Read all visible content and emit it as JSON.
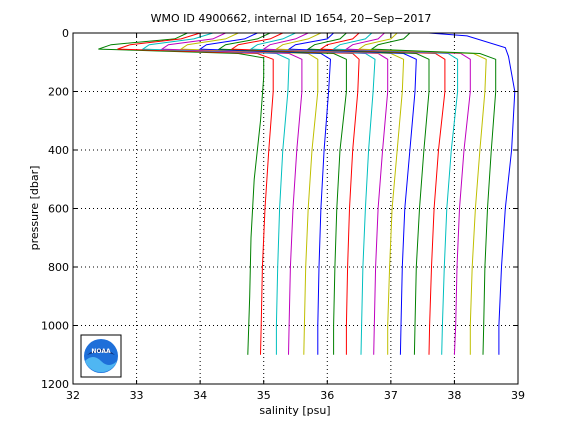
{
  "chart_data": {
    "type": "line",
    "title": "WMO ID 4900662, internal ID 1654, 20−Sep−2017",
    "xlabel": "salinity [psu]",
    "ylabel": "pressure [dbar]",
    "xlim": [
      32,
      39
    ],
    "ylim": [
      1200,
      0
    ],
    "y_reversed": true,
    "grid": "dotted",
    "xticks": [
      32,
      33,
      34,
      35,
      36,
      37,
      38,
      39
    ],
    "xtick_labels": [
      "32",
      "33",
      "34",
      "35",
      "36",
      "37",
      "38",
      "39"
    ],
    "yticks": [
      0,
      200,
      400,
      600,
      800,
      1000,
      1200
    ],
    "ytick_labels": [
      "0",
      "200",
      "400",
      "600",
      "800",
      "1000",
      "1200"
    ],
    "logo": "noaa-logo",
    "logo_text": "NOAA",
    "colors": [
      "#008000",
      "#ff0000",
      "#00bfbf",
      "#bf00bf",
      "#bfbf00",
      "#0000ff"
    ],
    "series": [
      {
        "color": "#008000",
        "points": [
          [
            33.8,
            0
          ],
          [
            33.6,
            20
          ],
          [
            32.6,
            40
          ],
          [
            32.4,
            55
          ],
          [
            34.6,
            70
          ],
          [
            35.0,
            85
          ],
          [
            35.0,
            150
          ],
          [
            34.95,
            300
          ],
          [
            34.85,
            500
          ],
          [
            34.8,
            700
          ],
          [
            34.78,
            900
          ],
          [
            34.75,
            1100
          ]
        ]
      },
      {
        "color": "#ff0000",
        "points": [
          [
            34.0,
            0
          ],
          [
            33.7,
            20
          ],
          [
            32.9,
            40
          ],
          [
            32.7,
            55
          ],
          [
            34.9,
            70
          ],
          [
            35.15,
            90
          ],
          [
            35.15,
            200
          ],
          [
            35.08,
            400
          ],
          [
            35.02,
            600
          ],
          [
            34.98,
            800
          ],
          [
            34.96,
            1000
          ],
          [
            34.95,
            1100
          ]
        ]
      },
      {
        "color": "#00bfbf",
        "points": [
          [
            34.2,
            0
          ],
          [
            33.9,
            20
          ],
          [
            33.2,
            40
          ],
          [
            33.1,
            55
          ],
          [
            35.2,
            70
          ],
          [
            35.4,
            90
          ],
          [
            35.38,
            200
          ],
          [
            35.3,
            400
          ],
          [
            35.25,
            600
          ],
          [
            35.22,
            800
          ],
          [
            35.2,
            1000
          ],
          [
            35.2,
            1100
          ]
        ]
      },
      {
        "color": "#bf00bf",
        "points": [
          [
            34.4,
            0
          ],
          [
            34.2,
            20
          ],
          [
            33.5,
            40
          ],
          [
            33.4,
            55
          ],
          [
            35.4,
            70
          ],
          [
            35.6,
            90
          ],
          [
            35.6,
            200
          ],
          [
            35.52,
            400
          ],
          [
            35.46,
            600
          ],
          [
            35.42,
            800
          ],
          [
            35.4,
            1000
          ],
          [
            35.39,
            1100
          ]
        ]
      },
      {
        "color": "#bfbf00",
        "points": [
          [
            34.6,
            0
          ],
          [
            34.4,
            20
          ],
          [
            33.8,
            40
          ],
          [
            33.7,
            55
          ],
          [
            35.7,
            70
          ],
          [
            35.85,
            90
          ],
          [
            35.85,
            200
          ],
          [
            35.76,
            400
          ],
          [
            35.7,
            600
          ],
          [
            35.66,
            800
          ],
          [
            35.64,
            1000
          ],
          [
            35.63,
            1100
          ]
        ]
      },
      {
        "color": "#0000ff",
        "points": [
          [
            34.9,
            0
          ],
          [
            34.7,
            20
          ],
          [
            34.1,
            40
          ],
          [
            34.0,
            55
          ],
          [
            35.9,
            70
          ],
          [
            36.05,
            90
          ],
          [
            36.02,
            200
          ],
          [
            35.95,
            400
          ],
          [
            35.9,
            600
          ],
          [
            35.87,
            800
          ],
          [
            35.85,
            1000
          ],
          [
            35.85,
            1100
          ]
        ]
      },
      {
        "color": "#008000",
        "points": [
          [
            35.1,
            0
          ],
          [
            34.9,
            20
          ],
          [
            34.4,
            40
          ],
          [
            34.3,
            55
          ],
          [
            36.1,
            70
          ],
          [
            36.3,
            90
          ],
          [
            36.3,
            200
          ],
          [
            36.2,
            400
          ],
          [
            36.15,
            600
          ],
          [
            36.12,
            800
          ],
          [
            36.1,
            1000
          ],
          [
            36.1,
            1100
          ]
        ]
      },
      {
        "color": "#ff0000",
        "points": [
          [
            35.3,
            0
          ],
          [
            35.1,
            20
          ],
          [
            34.6,
            40
          ],
          [
            34.5,
            55
          ],
          [
            36.4,
            70
          ],
          [
            36.5,
            90
          ],
          [
            36.48,
            200
          ],
          [
            36.4,
            400
          ],
          [
            36.35,
            600
          ],
          [
            36.32,
            800
          ],
          [
            36.3,
            1000
          ],
          [
            36.3,
            1100
          ]
        ]
      },
      {
        "color": "#00bfbf",
        "points": [
          [
            35.5,
            0
          ],
          [
            35.3,
            20
          ],
          [
            34.9,
            40
          ],
          [
            34.8,
            55
          ],
          [
            36.6,
            70
          ],
          [
            36.75,
            90
          ],
          [
            36.72,
            200
          ],
          [
            36.65,
            400
          ],
          [
            36.6,
            600
          ],
          [
            36.56,
            800
          ],
          [
            36.54,
            1000
          ],
          [
            36.53,
            1100
          ]
        ]
      },
      {
        "color": "#bf00bf",
        "points": [
          [
            35.7,
            0
          ],
          [
            35.5,
            20
          ],
          [
            35.1,
            40
          ],
          [
            35.0,
            55
          ],
          [
            36.8,
            70
          ],
          [
            36.95,
            90
          ],
          [
            36.95,
            200
          ],
          [
            36.87,
            400
          ],
          [
            36.8,
            600
          ],
          [
            36.76,
            800
          ],
          [
            36.74,
            1000
          ],
          [
            36.73,
            1100
          ]
        ]
      },
      {
        "color": "#bfbf00",
        "points": [
          [
            35.9,
            0
          ],
          [
            35.7,
            20
          ],
          [
            35.3,
            40
          ],
          [
            35.2,
            55
          ],
          [
            37.0,
            70
          ],
          [
            37.2,
            90
          ],
          [
            37.18,
            200
          ],
          [
            37.1,
            400
          ],
          [
            37.02,
            600
          ],
          [
            36.98,
            800
          ],
          [
            36.95,
            1000
          ],
          [
            36.95,
            1100
          ]
        ]
      },
      {
        "color": "#0000ff",
        "points": [
          [
            36.1,
            0
          ],
          [
            36.0,
            20
          ],
          [
            35.5,
            40
          ],
          [
            35.4,
            55
          ],
          [
            37.2,
            70
          ],
          [
            37.4,
            90
          ],
          [
            37.38,
            200
          ],
          [
            37.3,
            400
          ],
          [
            37.22,
            600
          ],
          [
            37.18,
            800
          ],
          [
            37.16,
            1000
          ],
          [
            37.15,
            1100
          ]
        ]
      },
      {
        "color": "#008000",
        "points": [
          [
            36.3,
            0
          ],
          [
            36.2,
            20
          ],
          [
            35.8,
            40
          ],
          [
            35.7,
            55
          ],
          [
            37.4,
            70
          ],
          [
            37.6,
            90
          ],
          [
            37.6,
            200
          ],
          [
            37.52,
            400
          ],
          [
            37.45,
            600
          ],
          [
            37.4,
            800
          ],
          [
            37.38,
            1000
          ],
          [
            37.37,
            1100
          ]
        ]
      },
      {
        "color": "#ff0000",
        "points": [
          [
            36.5,
            0
          ],
          [
            36.4,
            20
          ],
          [
            36.0,
            40
          ],
          [
            35.9,
            55
          ],
          [
            37.7,
            70
          ],
          [
            37.85,
            90
          ],
          [
            37.85,
            200
          ],
          [
            37.75,
            400
          ],
          [
            37.68,
            600
          ],
          [
            37.64,
            800
          ],
          [
            37.61,
            1000
          ],
          [
            37.6,
            1100
          ]
        ]
      },
      {
        "color": "#00bfbf",
        "points": [
          [
            36.7,
            0
          ],
          [
            36.6,
            20
          ],
          [
            36.2,
            40
          ],
          [
            36.1,
            55
          ],
          [
            37.9,
            70
          ],
          [
            38.05,
            90
          ],
          [
            38.05,
            200
          ],
          [
            37.95,
            400
          ],
          [
            37.88,
            600
          ],
          [
            37.84,
            800
          ],
          [
            37.81,
            1000
          ],
          [
            37.8,
            1100
          ]
        ]
      },
      {
        "color": "#bf00bf",
        "points": [
          [
            36.9,
            0
          ],
          [
            36.8,
            20
          ],
          [
            36.4,
            40
          ],
          [
            36.3,
            55
          ],
          [
            38.1,
            70
          ],
          [
            38.25,
            90
          ],
          [
            38.25,
            200
          ],
          [
            38.15,
            400
          ],
          [
            38.08,
            600
          ],
          [
            38.04,
            800
          ],
          [
            38.02,
            1000
          ],
          [
            38.0,
            1100
          ]
        ]
      },
      {
        "color": "#bfbf00",
        "points": [
          [
            37.1,
            0
          ],
          [
            37.0,
            20
          ],
          [
            36.6,
            40
          ],
          [
            36.5,
            55
          ],
          [
            38.3,
            70
          ],
          [
            38.5,
            90
          ],
          [
            38.48,
            200
          ],
          [
            38.4,
            400
          ],
          [
            38.33,
            600
          ],
          [
            38.28,
            800
          ],
          [
            38.25,
            1000
          ],
          [
            38.25,
            1100
          ]
        ]
      },
      {
        "color": "#008000",
        "points": [
          [
            37.3,
            0
          ],
          [
            37.2,
            20
          ],
          [
            36.8,
            40
          ],
          [
            36.7,
            55
          ],
          [
            38.4,
            70
          ],
          [
            38.65,
            90
          ],
          [
            38.65,
            200
          ],
          [
            38.58,
            400
          ],
          [
            38.52,
            600
          ],
          [
            38.48,
            800
          ],
          [
            38.46,
            1000
          ],
          [
            38.45,
            1100
          ]
        ]
      },
      {
        "color": "#0000ff",
        "points": [
          [
            37.6,
            0
          ],
          [
            38.2,
            10
          ],
          [
            38.8,
            50
          ],
          [
            38.85,
            80
          ],
          [
            38.95,
            200
          ],
          [
            38.9,
            400
          ],
          [
            38.8,
            600
          ],
          [
            38.74,
            800
          ],
          [
            38.7,
            1000
          ],
          [
            38.7,
            1100
          ]
        ]
      }
    ]
  }
}
